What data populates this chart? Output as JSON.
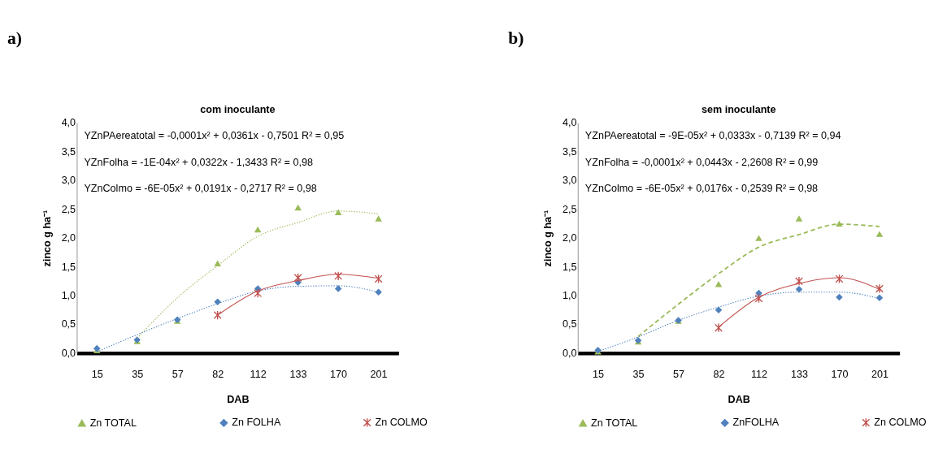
{
  "chart_data": [
    {
      "type": "scatter",
      "title": "com inoculante",
      "xlabel": "DAB",
      "ylabel": "zinco  g ha⁻¹",
      "categories": [
        "15",
        "35",
        "57",
        "82",
        "112",
        "133",
        "170",
        "201"
      ],
      "ylim": [
        0,
        4
      ],
      "yticks": [
        {
          "value": 0,
          "label": "0,0"
        },
        {
          "value": 0.5,
          "label": "0,5"
        },
        {
          "value": 1,
          "label": "1,0"
        },
        {
          "value": 1.5,
          "label": "1,5"
        },
        {
          "value": 2,
          "label": "2,0"
        },
        {
          "value": 2.5,
          "label": "2,5"
        },
        {
          "value": 3,
          "label": "3,0"
        },
        {
          "value": 3.5,
          "label": "3,5"
        },
        {
          "value": 4,
          "label": "4,0"
        }
      ],
      "grid": false,
      "legend": "bottom",
      "annotations": [
        "a)",
        "YZnPAereatotal = -0,0001x² + 0,0361x - 0,7501 R² = 0,95",
        "YZnFolha  = -1E-04x² + 0,0322x - 1,3433  R² = 0,98",
        "YZnColmo = -6E-05x² + 0,0191x - 0,2717 R² = 0,98"
      ],
      "series": [
        {
          "name": "Zn TOTAL",
          "color": "#9bbb59",
          "marker": "triangle",
          "values": [
            0.05,
            0.21,
            0.56,
            1.56,
            2.15,
            2.53,
            2.45,
            2.34
          ]
        },
        {
          "name": "Zn FOLHA",
          "color": "#4f81bd",
          "marker": "diamond",
          "values": [
            0.08,
            0.23,
            0.58,
            0.89,
            1.12,
            1.23,
            1.12,
            1.06
          ]
        },
        {
          "name": "Zn COLMO",
          "color": "#c0504d",
          "marker": "cross",
          "values": [
            null,
            null,
            null,
            0.66,
            1.04,
            1.31,
            1.34,
            1.29
          ]
        },
        {
          "type": "line",
          "color": "#9bbb59",
          "marker": "none",
          "line_style": "dotted",
          "values": [
            null,
            0.26,
            0.96,
            1.52,
            2.03,
            2.27,
            2.47,
            2.42
          ]
        },
        {
          "type": "line",
          "color": "#4f81bd",
          "marker": "none",
          "line_style": "dotted",
          "values": [
            0.02,
            0.32,
            0.6,
            0.86,
            1.08,
            1.16,
            1.17,
            1.06
          ]
        },
        {
          "type": "line",
          "color": "#c0504d",
          "marker": "none",
          "line_style": "solid",
          "values": [
            null,
            null,
            null,
            0.66,
            1.08,
            1.26,
            1.37,
            1.3
          ]
        }
      ]
    },
    {
      "type": "scatter",
      "title": "sem inoculante",
      "xlabel": "DAB",
      "ylabel": "zinco   g ha⁻¹",
      "categories": [
        "15",
        "35",
        "57",
        "82",
        "112",
        "133",
        "170",
        "201"
      ],
      "ylim": [
        0,
        4
      ],
      "yticks": [
        {
          "value": 0,
          "label": "0,0"
        },
        {
          "value": 0.5,
          "label": "0,5"
        },
        {
          "value": 1,
          "label": "1,0"
        },
        {
          "value": 1.5,
          "label": "1,5"
        },
        {
          "value": 2,
          "label": "2,0"
        },
        {
          "value": 2.5,
          "label": "2,5"
        },
        {
          "value": 3,
          "label": "3,0"
        },
        {
          "value": 3.5,
          "label": "3,5"
        },
        {
          "value": 4,
          "label": "4,0"
        }
      ],
      "grid": false,
      "legend": "bottom",
      "annotations": [
        "b)",
        "YZnPAereatotal = -9E-05x² + 0,0333x - 0,7139  R² = 0,94",
        "YZnFolha = -0,0001x² + 0,0443x - 2,2608 R² = 0,99",
        "YZnColmo = -6E-05x² + 0,0176x - 0,2539 R² = 0,98"
      ],
      "series": [
        {
          "name": "Zn TOTAL",
          "color": "#9bbb59",
          "marker": "triangle",
          "values": [
            0.03,
            0.2,
            0.56,
            1.2,
            2.0,
            2.34,
            2.25,
            2.07
          ]
        },
        {
          "name": "ZnFOLHA",
          "color": "#4f81bd",
          "marker": "diamond",
          "values": [
            0.05,
            0.22,
            0.57,
            0.75,
            1.04,
            1.11,
            0.97,
            0.96
          ]
        },
        {
          "name": "Zn COLMO",
          "color": "#c0504d",
          "marker": "cross",
          "values": [
            null,
            null,
            null,
            0.44,
            0.95,
            1.25,
            1.29,
            1.12
          ]
        },
        {
          "type": "line",
          "color": "#9bbb59",
          "marker": "none",
          "line_style": "dashed",
          "values": [
            null,
            0.29,
            0.85,
            1.38,
            1.84,
            2.06,
            2.24,
            2.2
          ]
        },
        {
          "type": "line",
          "color": "#4f81bd",
          "marker": "none",
          "line_style": "dotted",
          "values": [
            0.03,
            0.28,
            0.57,
            0.8,
            0.99,
            1.06,
            1.06,
            0.95
          ]
        },
        {
          "type": "line",
          "color": "#c0504d",
          "marker": "none",
          "line_style": "solid",
          "values": [
            null,
            null,
            null,
            0.45,
            0.97,
            1.21,
            1.31,
            1.11
          ]
        }
      ]
    }
  ]
}
